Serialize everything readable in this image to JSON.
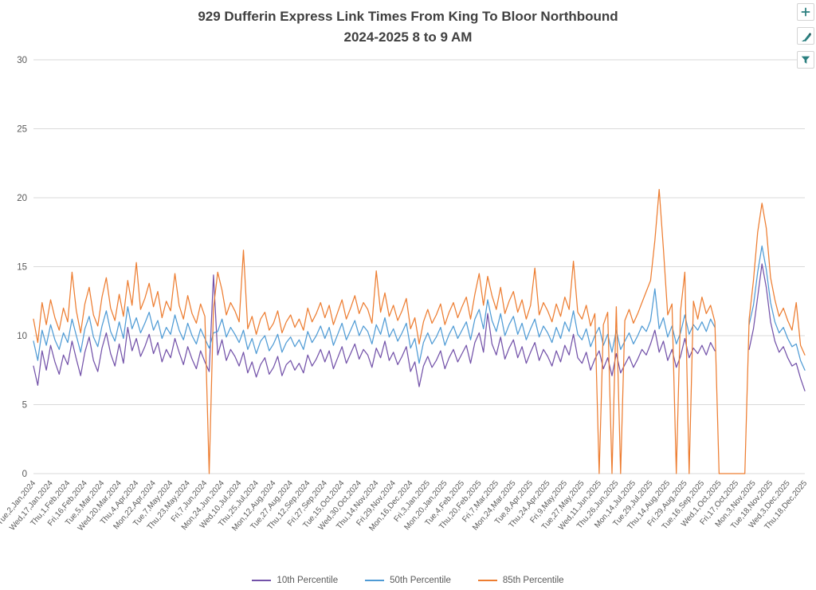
{
  "ui": {
    "title_color": "#404040",
    "axis_label_color": "#595959",
    "grid_color": "#D9D9D9",
    "button_border_color": "#D4D4D4",
    "button_icon_color": "#2A7F7F",
    "icons": [
      "plus-icon",
      "brush-icon",
      "funnel-icon"
    ]
  },
  "chart_data": {
    "type": "line",
    "title": "929 Dufferin Express Link Times From King To Bloor Northbound",
    "subtitle": "2024-2025 8 to 9 AM",
    "xlabel": "",
    "ylabel": "",
    "ylim": [
      0,
      30
    ],
    "y_ticks": [
      0,
      5,
      10,
      15,
      20,
      25,
      30
    ],
    "grid": true,
    "legend_position": "bottom",
    "points_per_tick_interval": 4,
    "x_tick_labels": [
      "Tue,2,Jan,2024",
      "Wed,17,Jan,2024",
      "Thu,1,Feb,2024",
      "Fri,16,Feb,2024",
      "Tue,5,Mar,2024",
      "Wed,20,Mar,2024",
      "Thu,4,Apr,2024",
      "Mon,22,Apr,2024",
      "Tue,7,May,2024",
      "Thu,23,May,2024",
      "Fri,7,Jun,2024",
      "Mon,24,Jun,2024",
      "Wed,10,Jul,2024",
      "Thu,25,Jul,2024",
      "Mon,12,Aug,2024",
      "Tue,27,Aug,2024",
      "Thu,12,Sep,2024",
      "Fri,27,Sep,2024",
      "Tue,15,Oct,2024",
      "Wed,30,Oct,2024",
      "Thu,14,Nov,2024",
      "Fri,29,Nov,2024",
      "Mon,16,Dec,2024",
      "Fri,3,Jan,2025",
      "Mon,20,Jan,2025",
      "Tue,4,Feb,2025",
      "Thu,20,Feb,2025",
      "Fri,7,Mar,2025",
      "Mon,24,Mar,2025",
      "Tue,8,Apr,2025",
      "Thu,24,Apr,2025",
      "Fri,9,May,2025",
      "Tue,27,May,2025",
      "Wed,11,Jun,2025",
      "Thu,26,Jun,2025",
      "Mon,14,Jul,2025",
      "Tue,29,Jul,2025",
      "Thu,14,Aug,2025",
      "Fri,29,Aug,2025",
      "Tue,16,Sep,2025",
      "Wed,1,Oct,2025",
      "Fri,17,Oct,2025",
      "Mon,3,Nov,2025",
      "Tue,18,Nov,2025",
      "Wed,3,Dec,2025",
      "Thu,18,Dec,2025"
    ],
    "series": [
      {
        "name": "10th Percentile",
        "color": "#7352A9",
        "values": [
          7.8,
          6.4,
          8.9,
          7.5,
          9.3,
          8.1,
          7.2,
          8.6,
          7.9,
          9.6,
          8.3,
          7.1,
          8.8,
          9.9,
          8.2,
          7.4,
          9.1,
          10.2,
          8.7,
          7.8,
          9.4,
          8.0,
          10.6,
          8.9,
          9.8,
          8.5,
          9.2,
          10.1,
          8.7,
          9.5,
          8.1,
          9.0,
          8.4,
          9.8,
          8.8,
          7.9,
          9.2,
          8.3,
          7.6,
          8.9,
          8.1,
          7.4,
          14.4,
          8.6,
          9.7,
          8.2,
          9.0,
          8.5,
          7.8,
          8.8,
          7.3,
          8.1,
          7.0,
          7.9,
          8.4,
          7.2,
          7.7,
          8.5,
          7.1,
          7.9,
          8.2,
          7.5,
          8.0,
          7.3,
          8.6,
          7.8,
          8.3,
          9.0,
          8.1,
          8.9,
          7.6,
          8.4,
          9.2,
          8.0,
          8.7,
          9.4,
          8.3,
          9.0,
          8.6,
          7.7,
          9.1,
          8.4,
          9.6,
          8.2,
          8.8,
          7.9,
          8.5,
          9.2,
          7.4,
          8.1,
          6.3,
          7.8,
          8.5,
          7.7,
          8.2,
          8.9,
          7.6,
          8.4,
          9.0,
          8.1,
          8.7,
          9.3,
          8.0,
          9.5,
          10.2,
          8.8,
          11.6,
          9.4,
          8.6,
          9.9,
          8.3,
          9.1,
          9.7,
          8.4,
          9.2,
          8.0,
          8.8,
          9.5,
          8.2,
          9.0,
          8.5,
          7.8,
          8.9,
          8.1,
          9.3,
          8.6,
          10.1,
          8.4,
          8.0,
          8.8,
          7.5,
          8.3,
          8.9,
          7.6,
          8.4,
          7.1,
          8.7,
          7.3,
          7.9,
          8.5,
          7.7,
          8.3,
          9.0,
          8.6,
          9.4,
          10.4,
          8.8,
          9.6,
          8.2,
          9.0,
          7.7,
          8.5,
          9.8,
          8.4,
          9.1,
          8.7,
          9.3,
          8.6,
          9.5,
          8.9,
          null,
          null,
          null,
          null,
          null,
          null,
          null,
          9.0,
          10.5,
          12.8,
          15.2,
          13.5,
          11.0,
          9.6,
          8.8,
          9.2,
          8.4,
          7.8,
          8.0,
          6.9,
          6.0
        ]
      },
      {
        "name": "50th Percentile",
        "color": "#4F9BD5",
        "values": [
          9.6,
          8.2,
          10.4,
          9.3,
          10.8,
          9.7,
          9.0,
          10.2,
          9.5,
          11.2,
          10.0,
          8.8,
          10.5,
          11.4,
          9.9,
          9.2,
          10.7,
          11.8,
          10.3,
          9.6,
          11.0,
          9.8,
          12.1,
          10.5,
          11.3,
          10.2,
          10.9,
          11.7,
          10.4,
          11.1,
          9.8,
          10.6,
          10.1,
          11.5,
          10.4,
          9.7,
          10.9,
          10.0,
          9.4,
          10.5,
          9.8,
          9.1,
          10.2,
          10.3,
          11.2,
          9.9,
          10.6,
          10.1,
          9.5,
          10.4,
          9.0,
          9.8,
          8.7,
          9.6,
          10.0,
          8.9,
          9.4,
          10.1,
          8.8,
          9.5,
          9.9,
          9.2,
          9.7,
          9.0,
          10.3,
          9.5,
          10.0,
          10.7,
          9.8,
          10.6,
          9.3,
          10.1,
          10.9,
          9.7,
          10.4,
          11.1,
          10.0,
          10.7,
          10.3,
          9.4,
          10.8,
          10.1,
          11.3,
          9.9,
          10.5,
          9.6,
          10.2,
          10.9,
          9.1,
          9.8,
          8.0,
          9.5,
          10.2,
          9.4,
          9.9,
          10.6,
          9.3,
          10.1,
          10.7,
          9.8,
          10.4,
          11.0,
          9.7,
          11.2,
          11.9,
          10.5,
          12.6,
          11.1,
          10.3,
          11.6,
          10.0,
          10.8,
          11.4,
          10.1,
          10.9,
          9.7,
          10.5,
          11.2,
          9.9,
          10.7,
          10.2,
          9.5,
          10.6,
          9.8,
          11.0,
          10.3,
          11.8,
          10.1,
          9.7,
          10.5,
          9.2,
          10.0,
          10.6,
          9.3,
          10.1,
          8.8,
          10.4,
          9.0,
          9.6,
          10.2,
          9.4,
          10.0,
          10.7,
          10.3,
          11.1,
          13.4,
          10.5,
          11.3,
          9.9,
          10.7,
          9.4,
          10.2,
          11.5,
          10.1,
          10.8,
          10.4,
          11.0,
          10.3,
          11.2,
          10.6,
          null,
          null,
          null,
          null,
          null,
          null,
          null,
          10.8,
          12.2,
          14.6,
          16.5,
          14.8,
          12.4,
          11.0,
          10.2,
          10.6,
          9.8,
          9.2,
          9.4,
          8.2,
          7.5
        ]
      },
      {
        "name": "85th Percentile",
        "color": "#ED7D31",
        "values": [
          11.2,
          9.5,
          12.4,
          10.8,
          12.6,
          11.3,
          10.4,
          12.0,
          11.0,
          14.6,
          11.8,
          10.2,
          12.3,
          13.5,
          11.5,
          10.7,
          12.8,
          14.2,
          12.0,
          11.1,
          13.0,
          11.4,
          14.0,
          12.2,
          15.3,
          11.9,
          12.7,
          13.8,
          12.1,
          13.2,
          11.3,
          12.5,
          11.8,
          14.5,
          12.2,
          11.2,
          12.9,
          11.6,
          10.9,
          12.3,
          11.4,
          0,
          12.0,
          14.6,
          13.3,
          11.5,
          12.4,
          11.8,
          11.0,
          16.2,
          10.5,
          11.4,
          10.1,
          11.2,
          11.7,
          10.4,
          10.9,
          11.8,
          10.2,
          11.0,
          11.5,
          10.6,
          11.2,
          10.4,
          12.0,
          11.0,
          11.6,
          12.4,
          11.3,
          12.2,
          10.8,
          11.7,
          12.6,
          11.2,
          12.0,
          12.9,
          11.6,
          12.4,
          11.9,
          10.9,
          14.7,
          11.7,
          13.1,
          11.4,
          12.2,
          11.1,
          11.8,
          12.7,
          10.5,
          11.3,
          9.4,
          11.0,
          11.9,
          10.9,
          11.5,
          12.3,
          10.8,
          11.7,
          12.4,
          11.3,
          12.1,
          12.8,
          11.2,
          13.0,
          14.5,
          12.2,
          14.3,
          12.9,
          11.9,
          13.5,
          11.6,
          12.5,
          13.2,
          11.7,
          12.6,
          11.2,
          12.2,
          14.9,
          11.5,
          12.4,
          11.8,
          11.0,
          12.3,
          11.4,
          12.8,
          11.9,
          15.4,
          11.7,
          11.2,
          12.2,
          10.7,
          11.6,
          0,
          10.8,
          11.7,
          0,
          12.1,
          0,
          11.1,
          11.9,
          10.9,
          11.6,
          12.4,
          13.2,
          14.0,
          16.9,
          20.6,
          16.3,
          11.5,
          12.3,
          0,
          11.8,
          14.6,
          0,
          12.5,
          11.2,
          12.8,
          11.6,
          12.2,
          11.0,
          0,
          0,
          0,
          0,
          0,
          0,
          0,
          11.2,
          14.0,
          17.5,
          19.6,
          17.8,
          14.2,
          12.6,
          11.4,
          12.0,
          11.1,
          10.4,
          12.4,
          9.3,
          8.6
        ]
      }
    ]
  }
}
